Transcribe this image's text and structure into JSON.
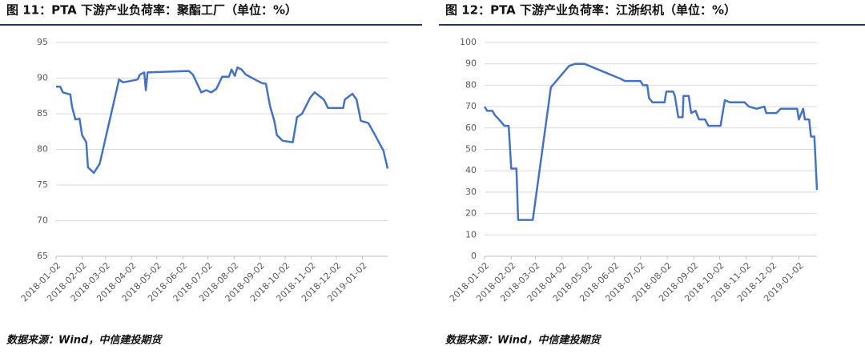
{
  "chart_data": [
    {
      "type": "line",
      "title": "图 11：PTA 下游产业负荷率：聚酯工厂（单位：%）",
      "source": "数据来源：Wind，中信建投期货",
      "color": "#4472c4",
      "grid": true,
      "ylim": [
        65,
        95
      ],
      "yticks": [
        65,
        70,
        75,
        80,
        85,
        90,
        95
      ],
      "xlim": [
        "2018-01-02",
        "2019-02-01"
      ],
      "xticks": [
        "2018-01-02",
        "2018-02-02",
        "2018-03-02",
        "2018-04-02",
        "2018-05-02",
        "2018-06-02",
        "2018-07-02",
        "2018-08-02",
        "2018-09-02",
        "2018-10-02",
        "2018-11-02",
        "2018-12-02",
        "2019-01-02"
      ],
      "x": [
        "2018-01-02",
        "2018-01-07",
        "2018-01-10",
        "2018-01-19",
        "2018-01-21",
        "2018-01-25",
        "2018-01-30",
        "2018-02-02",
        "2018-02-07",
        "2018-02-09",
        "2018-02-16",
        "2018-02-23",
        "2018-03-18",
        "2018-03-23",
        "2018-04-09",
        "2018-04-12",
        "2018-04-17",
        "2018-04-19",
        "2018-04-21",
        "2018-06-09",
        "2018-06-14",
        "2018-06-24",
        "2018-06-30",
        "2018-07-06",
        "2018-07-12",
        "2018-07-19",
        "2018-07-27",
        "2018-07-30",
        "2018-08-03",
        "2018-08-06",
        "2018-08-11",
        "2018-08-16",
        "2018-08-27",
        "2018-09-04",
        "2018-09-09",
        "2018-09-14",
        "2018-09-19",
        "2018-09-22",
        "2018-09-29",
        "2018-10-11",
        "2018-10-16",
        "2018-10-22",
        "2018-11-01",
        "2018-11-06",
        "2018-11-17",
        "2018-11-22",
        "2018-12-10",
        "2018-12-12",
        "2018-12-21",
        "2018-12-26",
        "2018-12-31",
        "2019-01-09",
        "2019-01-17",
        "2019-01-27",
        "2019-02-01"
      ],
      "values": [
        88.8,
        88.8,
        88,
        87.7,
        86,
        84.2,
        84.3,
        82,
        81,
        77.5,
        76.7,
        78,
        89.8,
        89.4,
        89.8,
        90.5,
        90.8,
        88.3,
        90.8,
        91,
        90.5,
        88,
        88.3,
        88,
        88.5,
        90.2,
        90.2,
        91.2,
        90.3,
        91.5,
        91.2,
        90.5,
        89.8,
        89.3,
        89.2,
        86,
        84,
        82,
        81.2,
        81,
        84.5,
        85,
        87.3,
        88,
        87,
        85.8,
        85.8,
        87,
        87.8,
        87,
        84,
        83.7,
        82,
        79.8,
        77.3
      ]
    },
    {
      "type": "line",
      "title": "图 12：PTA 下游产业负荷率：江浙织机（单位：%）",
      "source": "数据来源：Wind，中信建投期货",
      "color": "#4472c4",
      "grid": true,
      "ylim": [
        0,
        100
      ],
      "yticks": [
        0,
        10,
        20,
        30,
        40,
        50,
        60,
        70,
        80,
        90,
        100
      ],
      "xlim": [
        "2018-01-02",
        "2019-01-23"
      ],
      "xticks": [
        "2018-01-02",
        "2018-02-02",
        "2018-03-02",
        "2018-04-02",
        "2018-05-02",
        "2018-06-02",
        "2018-07-02",
        "2018-08-02",
        "2018-09-02",
        "2018-10-02",
        "2018-11-02",
        "2018-12-02",
        "2019-01-02"
      ],
      "x": [
        "2018-01-02",
        "2018-01-05",
        "2018-01-11",
        "2018-01-14",
        "2018-01-21",
        "2018-01-25",
        "2018-01-30",
        "2018-02-02",
        "2018-02-08",
        "2018-02-10",
        "2018-02-27",
        "2018-03-20",
        "2018-04-10",
        "2018-04-17",
        "2018-04-28",
        "2018-06-09",
        "2018-06-14",
        "2018-07-02",
        "2018-07-05",
        "2018-07-10",
        "2018-07-12",
        "2018-07-16",
        "2018-07-30",
        "2018-08-01",
        "2018-08-09",
        "2018-08-11",
        "2018-08-15",
        "2018-08-20",
        "2018-08-21",
        "2018-08-27",
        "2018-08-30",
        "2018-09-04",
        "2018-09-08",
        "2018-09-15",
        "2018-09-19",
        "2018-10-03",
        "2018-10-08",
        "2018-10-14",
        "2018-10-31",
        "2018-11-05",
        "2018-11-14",
        "2018-11-23",
        "2018-11-25",
        "2018-12-07",
        "2018-12-12",
        "2018-12-31",
        "2019-01-02",
        "2019-01-07",
        "2019-01-09",
        "2019-01-14",
        "2019-01-16",
        "2019-01-20",
        "2019-01-23"
      ],
      "values": [
        70,
        68,
        68,
        66,
        63,
        61,
        61,
        41,
        41,
        17,
        17,
        79,
        89,
        90,
        90,
        83,
        82,
        82,
        80,
        80,
        74,
        72,
        72,
        77,
        77,
        75,
        65,
        65,
        75,
        75,
        67,
        68,
        64,
        64,
        61,
        61,
        73,
        72,
        72,
        70,
        69,
        70,
        67,
        67,
        69,
        69,
        64,
        69,
        64,
        64,
        56,
        56,
        31
      ]
    }
  ]
}
